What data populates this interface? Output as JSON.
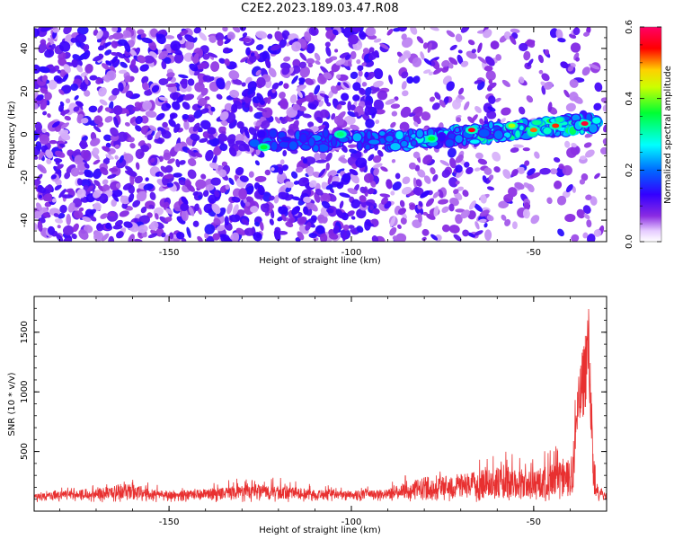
{
  "title": "C2E2.2023.189.03.47.R08",
  "chart_data": [
    {
      "type": "heatmap",
      "xlabel": "Height of straight line (km)",
      "ylabel": "Frequency (Hz)",
      "xlim": [
        -187,
        -30
      ],
      "ylim": [
        -50,
        50
      ],
      "xticks": [
        -150,
        -100,
        -50
      ],
      "xtick_labels": [
        "-150",
        "-100",
        "-50"
      ],
      "yticks": [
        -40,
        -20,
        0,
        20,
        40
      ],
      "ytick_labels": [
        "-40",
        "-20",
        "0",
        "20",
        "40"
      ],
      "colorbar": {
        "label": "Normalized spectral amplitude",
        "range": [
          0.0,
          0.6
        ],
        "ticks": [
          0.0,
          0.2,
          0.4,
          0.6
        ],
        "tick_labels": [
          "0.0",
          "0.2",
          "0.4",
          "0.6"
        ],
        "colormap": "rainbow (white-purple-blue-cyan-green-yellow-red-magenta)"
      },
      "features": {
        "signal_track": "horizontal band near 0 to 5 Hz, strengthening from about -125 km toward -33 km",
        "peak_amplitude": 0.6
      }
    },
    {
      "type": "line",
      "xlabel": "Height of straight line (km)",
      "ylabel": "SNR (10 * v/v)",
      "xlim": [
        -187,
        -30
      ],
      "ylim": [
        0,
        1800
      ],
      "xticks": [
        -150,
        -100,
        -50
      ],
      "xtick_labels": [
        "-150",
        "-100",
        "-50"
      ],
      "yticks": [
        500,
        1000,
        1500
      ],
      "ytick_labels": [
        "500",
        "1000",
        "1500"
      ],
      "color": "#e83030",
      "series_key_points": {
        "x": [
          -187,
          -160,
          -150,
          -125,
          -110,
          -100,
          -90,
          -80,
          -70,
          -60,
          -50,
          -45,
          -40,
          -38,
          -36,
          -35,
          -34,
          -33,
          -30
        ],
        "y": [
          150,
          250,
          170,
          250,
          200,
          180,
          200,
          320,
          350,
          420,
          380,
          450,
          500,
          1050,
          1500,
          1800,
          900,
          250,
          150
        ]
      }
    }
  ]
}
